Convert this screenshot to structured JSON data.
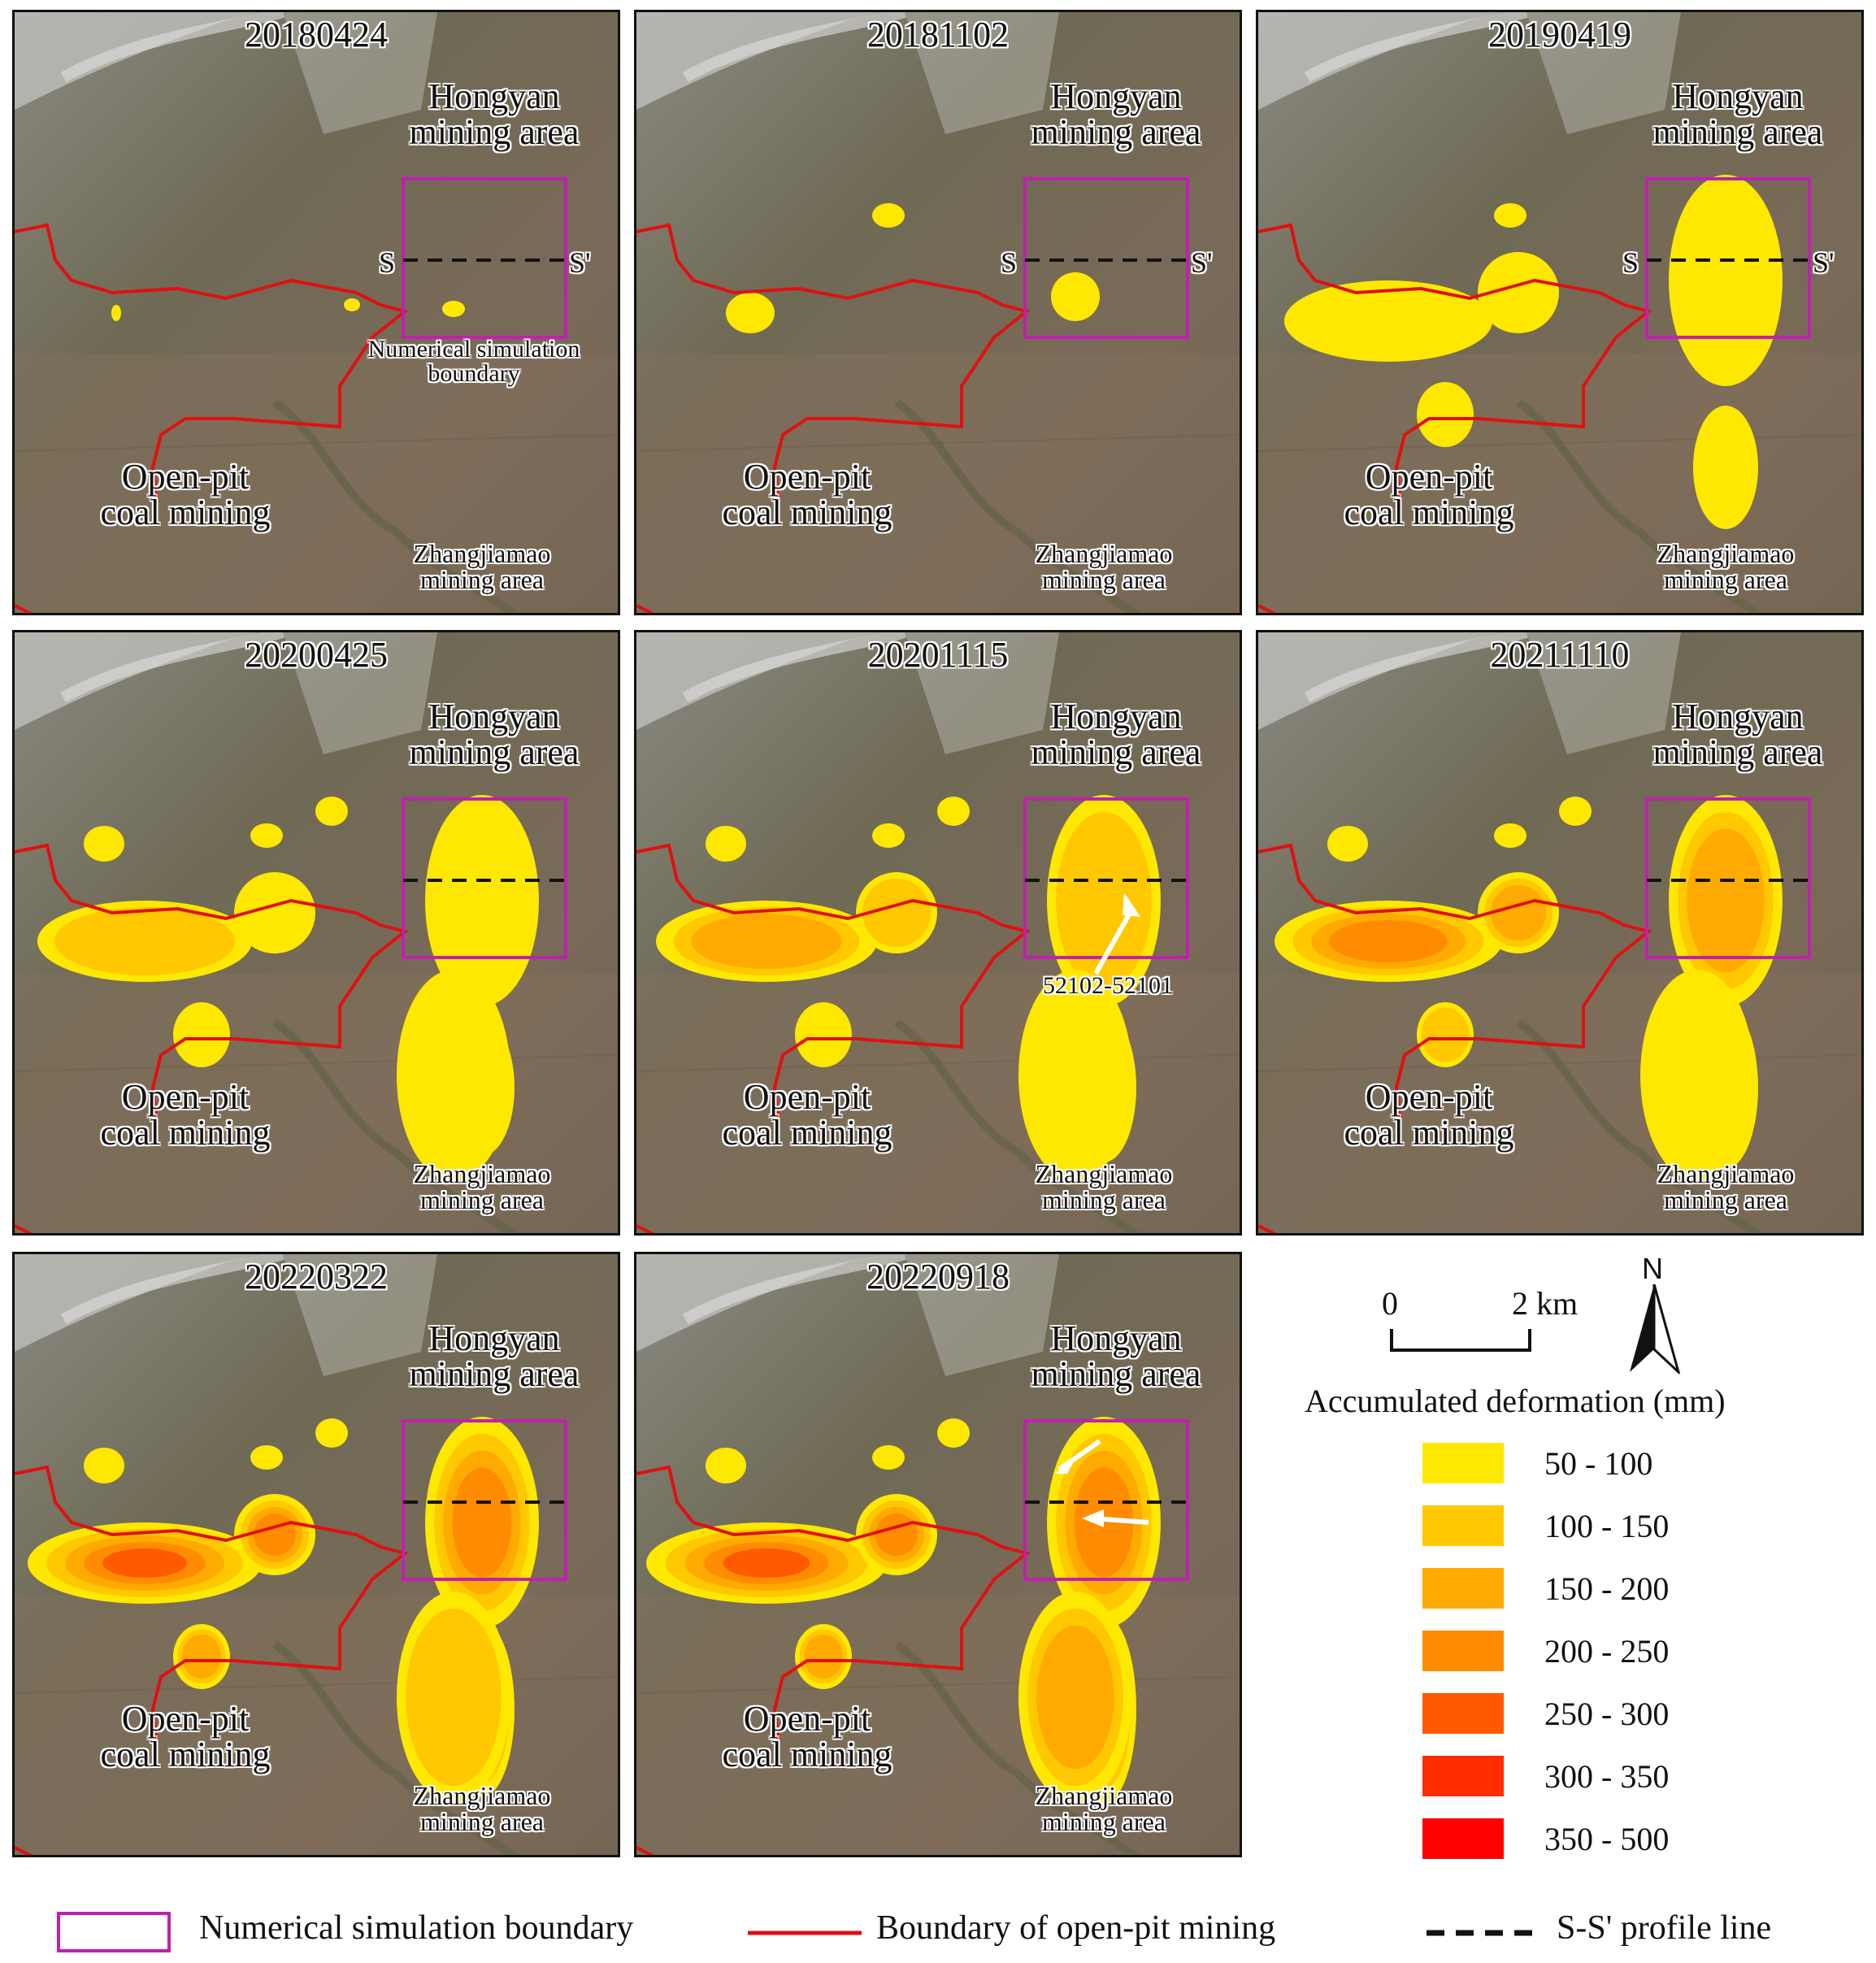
{
  "panels": [
    {
      "date": "20180424",
      "stage": 0,
      "show_nsb_label": true,
      "annotation": ""
    },
    {
      "date": "20181102",
      "stage": 1,
      "show_nsb_label": false,
      "annotation": ""
    },
    {
      "date": "20190419",
      "stage": 2,
      "show_nsb_label": false,
      "annotation": ""
    },
    {
      "date": "20200425",
      "stage": 3,
      "show_nsb_label": false,
      "annotation": ""
    },
    {
      "date": "20201115",
      "stage": 4,
      "show_nsb_label": false,
      "annotation": "52102-52101"
    },
    {
      "date": "20211110",
      "stage": 5,
      "show_nsb_label": false,
      "annotation": ""
    },
    {
      "date": "20220322",
      "stage": 6,
      "show_nsb_label": false,
      "annotation": ""
    },
    {
      "date": "20220918",
      "stage": 7,
      "show_nsb_label": false,
      "annotation": ""
    }
  ],
  "map_labels": {
    "hongyan_line1": "Hongyan",
    "hongyan_line2": "mining area",
    "openpit_line1": "Open-pit",
    "openpit_line2": "coal mining",
    "zhang_line1": "Zhangjiamao",
    "zhang_line2": "mining area",
    "nsb_line1": "Numerical simulation",
    "nsb_line2": "boundary",
    "s_label": "S",
    "s_prime_label": "S'"
  },
  "scale_bar": {
    "start": "0",
    "end": "2 km"
  },
  "north_arrow": {
    "label": "N"
  },
  "legend": {
    "title": "Accumulated deformation (mm)",
    "classes": [
      {
        "label": "50 - 100",
        "color": "#ffe800"
      },
      {
        "label": "100 - 150",
        "color": "#ffc800"
      },
      {
        "label": "150 - 200",
        "color": "#ffaa00"
      },
      {
        "label": "200 - 250",
        "color": "#ff8c00"
      },
      {
        "label": "250 - 300",
        "color": "#ff5a00"
      },
      {
        "label": "300 - 350",
        "color": "#ff2d00"
      },
      {
        "label": "350 - 500",
        "color": "#ff0000"
      }
    ]
  },
  "bottom_legend": {
    "nsb": "Numerical simulation boundary",
    "openpit": "Boundary of open-pit mining",
    "profile": "S-S' profile line"
  },
  "colors": {
    "nsb_box": "#c020b0",
    "openpit_line": "#e01010",
    "profile_line": "#111111",
    "terrain": "#7d7460"
  }
}
